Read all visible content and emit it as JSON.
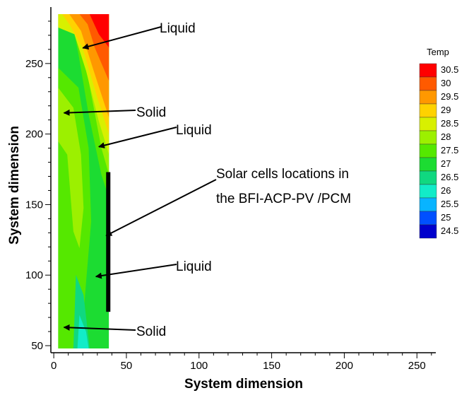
{
  "chart_data": {
    "type": "heatmap",
    "title": "",
    "xlabel": "System dimension",
    "ylabel": "System dimension",
    "xlim": [
      -2,
      263
    ],
    "ylim": [
      45,
      290
    ],
    "x_ticks": [
      0,
      50,
      100,
      150,
      200,
      250
    ],
    "y_ticks": [
      50,
      100,
      150,
      200,
      250
    ],
    "grid": false,
    "legend": {
      "title": "Temp",
      "placement": "right",
      "levels": [
        "30.5",
        "30",
        "29.5",
        "29",
        "28.5",
        "28",
        "27.5",
        "27",
        "26.5",
        "26",
        "25.5",
        "25",
        "24.5"
      ],
      "colors": [
        "#ff0000",
        "#ff5a00",
        "#ff9800",
        "#ffd200",
        "#d8f000",
        "#9cf000",
        "#55e800",
        "#1cdc32",
        "#10d880",
        "#12ecc8",
        "#08b4ff",
        "#0050ff",
        "#0000cc"
      ]
    },
    "domain": {
      "x": [
        3,
        38
      ],
      "y": [
        48,
        285
      ]
    },
    "annotations": [
      {
        "text": "Liquid",
        "target": [
          20,
          261
        ]
      },
      {
        "text": "Solid",
        "target": [
          7,
          215
        ]
      },
      {
        "text": "Liquid",
        "target": [
          31,
          191
        ]
      },
      {
        "text": "Solar cells locations in",
        "target": [
          36,
          128
        ]
      },
      {
        "text": "the BFI-ACP-PV /PCM",
        "target": null
      },
      {
        "text": "Liquid",
        "target": [
          29,
          99
        ]
      },
      {
        "text": "Solid",
        "target": [
          7,
          63
        ]
      }
    ],
    "solar_cell_strip": {
      "x": 38,
      "y_from": 74,
      "y_to": 173
    }
  }
}
